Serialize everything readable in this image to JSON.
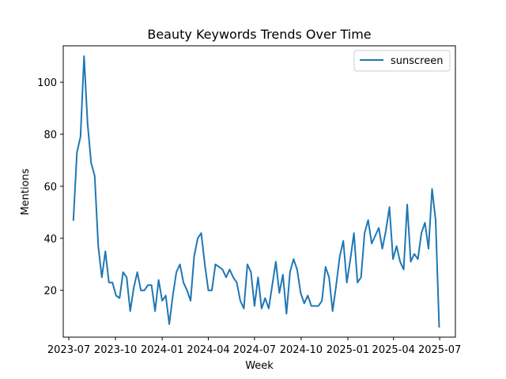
{
  "chart_data": {
    "type": "line",
    "title": "Beauty Keywords Trends Over Time",
    "xlabel": "Week",
    "ylabel": "Mentions",
    "x_ticks": [
      "2023-07",
      "2023-10",
      "2024-01",
      "2024-04",
      "2024-07",
      "2024-10",
      "2025-01",
      "2025-04",
      "2025-07"
    ],
    "y_ticks": [
      "20",
      "40",
      "60",
      "80",
      "100"
    ],
    "ylim": [
      2,
      114
    ],
    "xlim": [
      "2023-06-20",
      "2025-08-01"
    ],
    "grid": false,
    "legend_position": "top-right",
    "colors": {
      "series": "#1f77b4"
    },
    "start_week": "2023-07-10",
    "week_step_days": 7,
    "series": [
      {
        "name": "sunscreen",
        "values": [
          47,
          73,
          79,
          110,
          84,
          69,
          64,
          37,
          25,
          35,
          23,
          23,
          18,
          17,
          27,
          25,
          12,
          21,
          27,
          20,
          20,
          22,
          22,
          12,
          24,
          16,
          18,
          7,
          18,
          27,
          30,
          23,
          20,
          16,
          33,
          40,
          42,
          30,
          20,
          20,
          30,
          29,
          28,
          25,
          28,
          25,
          23,
          16,
          13,
          30,
          27,
          14,
          25,
          13,
          17,
          13,
          22,
          31,
          19,
          26,
          11,
          27,
          32,
          28,
          19,
          15,
          18,
          14,
          14,
          14,
          16,
          29,
          25,
          12,
          22,
          33,
          39,
          23,
          32,
          42,
          23,
          25,
          42,
          47,
          38,
          41,
          44,
          36,
          43,
          52,
          32,
          37,
          31,
          28,
          53,
          31,
          34,
          32,
          42,
          46,
          36,
          59,
          47,
          6
        ]
      }
    ]
  }
}
